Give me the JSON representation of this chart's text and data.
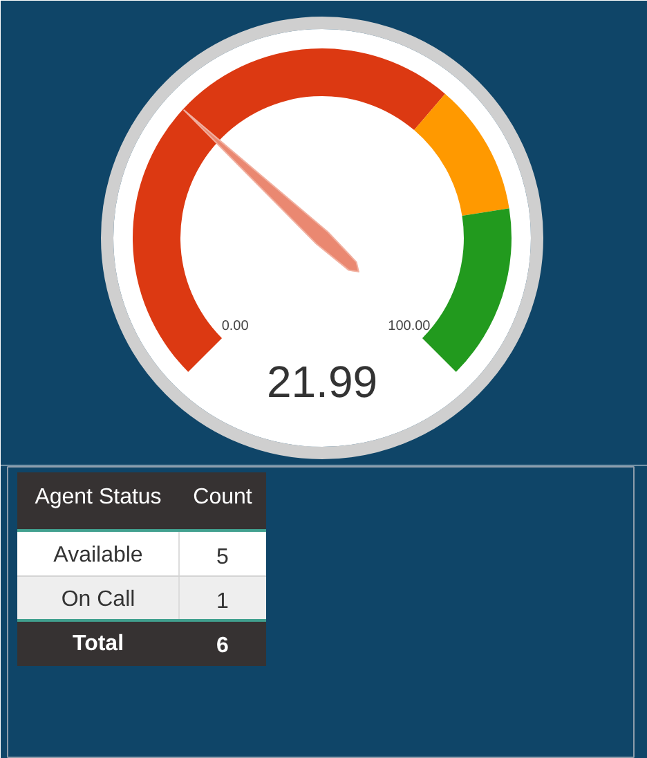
{
  "chart_data": [
    {
      "type": "donut",
      "categories": [
        null,
        null,
        null
      ],
      "values": [
        65,
        15,
        20
      ],
      "colors": [
        "#dc3912",
        "#ff9900",
        "#229a1e"
      ],
      "needle": null,
      "annotations": [
        "0.00",
        "100.00",
        "21.99"
      ]
    },
    {
      "type": "other",
      "xlabel": "Agent Status",
      "ylabel": "Count",
      "categories": [
        "Available",
        "On Call"
      ],
      "values": [
        5,
        1
      ],
      "data_labels": true,
      "totals": [
        "6"
      ],
      "annotations": [
        "Total"
      ]
    }
  ]
}
